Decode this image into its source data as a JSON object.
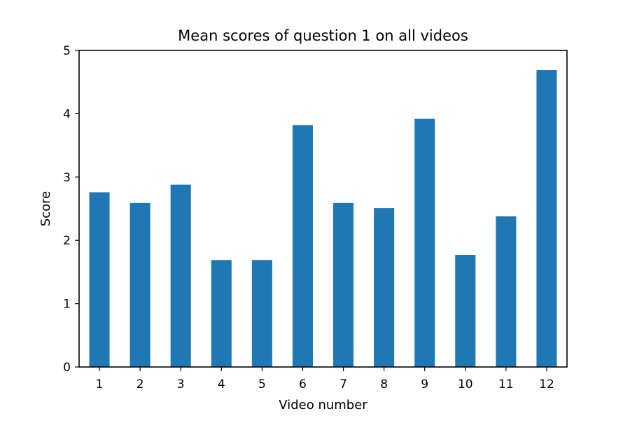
{
  "chart_data": {
    "type": "bar",
    "title": "Mean scores of question 1 on all videos",
    "xlabel": "Video number",
    "ylabel": "Score",
    "categories": [
      "1",
      "2",
      "3",
      "4",
      "5",
      "6",
      "7",
      "8",
      "9",
      "10",
      "11",
      "12"
    ],
    "values": [
      2.76,
      2.59,
      2.88,
      1.69,
      1.69,
      3.82,
      2.59,
      2.51,
      3.92,
      1.77,
      2.38,
      4.69
    ],
    "ylim": [
      0,
      5
    ],
    "yticks": [
      "0",
      "1",
      "2",
      "3",
      "4",
      "5"
    ],
    "grid": false,
    "legend": "none",
    "bar_color": "#1f77b4"
  }
}
